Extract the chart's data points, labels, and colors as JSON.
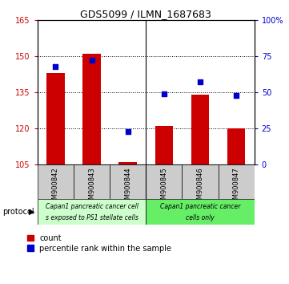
{
  "title": "GDS5099 / ILMN_1687683",
  "samples": [
    "GSM900842",
    "GSM900843",
    "GSM900844",
    "GSM900845",
    "GSM900846",
    "GSM900847"
  ],
  "counts": [
    143,
    151,
    106,
    121,
    134,
    120
  ],
  "percentile_ranks": [
    68,
    72,
    23,
    49,
    57,
    48
  ],
  "ylim_left": [
    105,
    165
  ],
  "ylim_right": [
    0,
    100
  ],
  "yticks_left": [
    105,
    120,
    135,
    150,
    165
  ],
  "yticks_right": [
    0,
    25,
    50,
    75,
    100
  ],
  "yticklabels_right": [
    "0",
    "25",
    "50",
    "75",
    "100%"
  ],
  "bar_color": "#cc0000",
  "scatter_color": "#0000cc",
  "bar_bottom": 105,
  "group1_color": "#ccffcc",
  "group2_color": "#66ee66",
  "sample_box_color": "#cccccc",
  "group1_label_line1": "Capan1 pancreatic cancer cell",
  "group1_label_line2": "s exposed to PS1 stellate cells",
  "group2_label_line1": "Capan1 pancreatic cancer",
  "group2_label_line2": "cells only",
  "legend_items": [
    {
      "color": "#cc0000",
      "label": "count"
    },
    {
      "color": "#0000cc",
      "label": "percentile rank within the sample"
    }
  ],
  "protocol_label": "protocol"
}
